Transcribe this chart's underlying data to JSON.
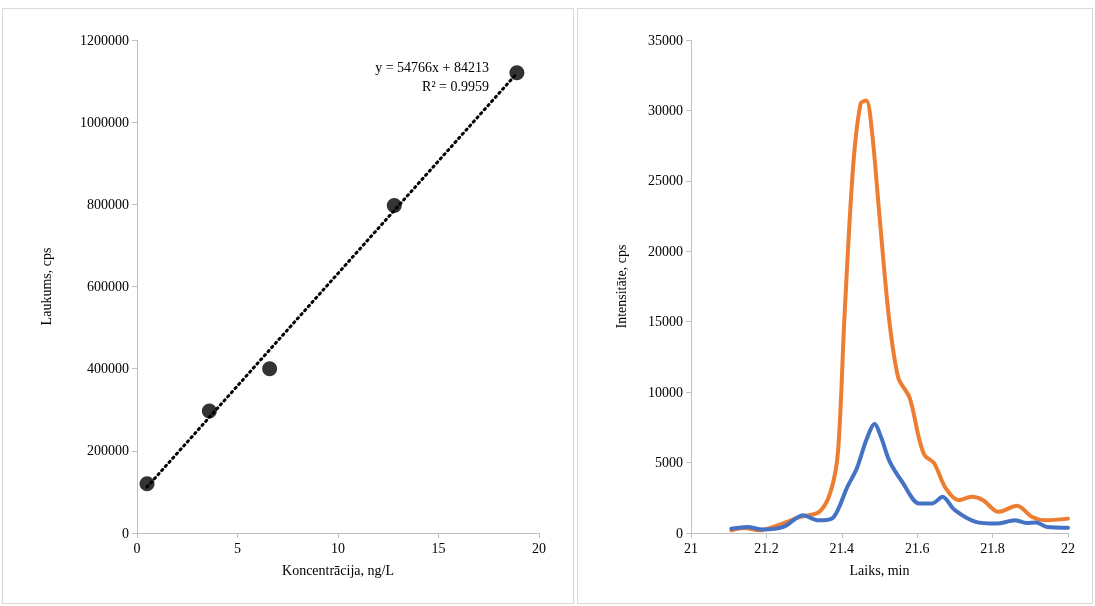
{
  "chart_data": [
    {
      "type": "scatter",
      "xlabel": "Koncentrācija, ng/L",
      "ylabel": "Laukums, cps",
      "xlim": [
        0,
        20
      ],
      "xticks": [
        0,
        5,
        10,
        15,
        20
      ],
      "ylim": [
        0,
        1200000
      ],
      "yticks": [
        0,
        200000,
        400000,
        600000,
        800000,
        1000000,
        1200000
      ],
      "grid": false,
      "annotations": [
        "y = 54766x + 84213",
        "R² = 0.9959"
      ],
      "series": [
        {
          "color": "#000000",
          "marker": "circle",
          "x": [
            0.5,
            3.6,
            6.6,
            12.8,
            18.9
          ],
          "values": [
            120000,
            297000,
            400000,
            797000,
            1120000
          ]
        },
        {
          "type": "line",
          "color": "#000000",
          "marker": "none",
          "line_style": "dotted",
          "x": [
            0.5,
            18.9
          ],
          "values": [
            112000,
            1119000
          ]
        }
      ]
    },
    {
      "type": "line",
      "xlabel": "Laiks, min",
      "ylabel": "Intensitāte, cps",
      "xlim": [
        21,
        22
      ],
      "xticks": [
        21,
        21.2,
        21.4,
        21.6,
        21.8,
        22
      ],
      "ylim": [
        0,
        35000
      ],
      "yticks": [
        0,
        5000,
        10000,
        15000,
        20000,
        25000,
        30000,
        35000
      ],
      "grid": false,
      "marker": "none",
      "line_style": "solid",
      "series": [
        {
          "color": "#ed7d31",
          "x": [
            21.107,
            21.14,
            21.18,
            21.235,
            21.29,
            21.34,
            21.37,
            21.39,
            21.407,
            21.43,
            21.45,
            21.465,
            21.48,
            21.5,
            21.525,
            21.55,
            21.58,
            21.605,
            21.62,
            21.645,
            21.675,
            21.71,
            21.745,
            21.775,
            21.815,
            21.865,
            21.905,
            21.94,
            22.0
          ],
          "values": [
            190,
            360,
            190,
            600,
            1140,
            1500,
            2900,
            5800,
            15300,
            26000,
            30500,
            30700,
            28500,
            22500,
            15300,
            11000,
            9600,
            6700,
            5500,
            4950,
            3200,
            2330,
            2570,
            2330,
            1500,
            1930,
            1140,
            900,
            1020
          ]
        },
        {
          "color": "#4472c4",
          "x": [
            21.107,
            21.15,
            21.19,
            21.245,
            21.297,
            21.337,
            21.376,
            21.415,
            21.44,
            21.465,
            21.487,
            21.505,
            21.527,
            21.56,
            21.605,
            21.64,
            21.667,
            21.7,
            21.755,
            21.81,
            21.86,
            21.89,
            21.915,
            21.945,
            22.0
          ],
          "values": [
            310,
            430,
            240,
            430,
            1260,
            900,
            1070,
            3290,
            4600,
            6600,
            7740,
            6740,
            5070,
            3640,
            2100,
            2100,
            2570,
            1620,
            790,
            670,
            900,
            710,
            740,
            430,
            380
          ]
        }
      ]
    }
  ]
}
